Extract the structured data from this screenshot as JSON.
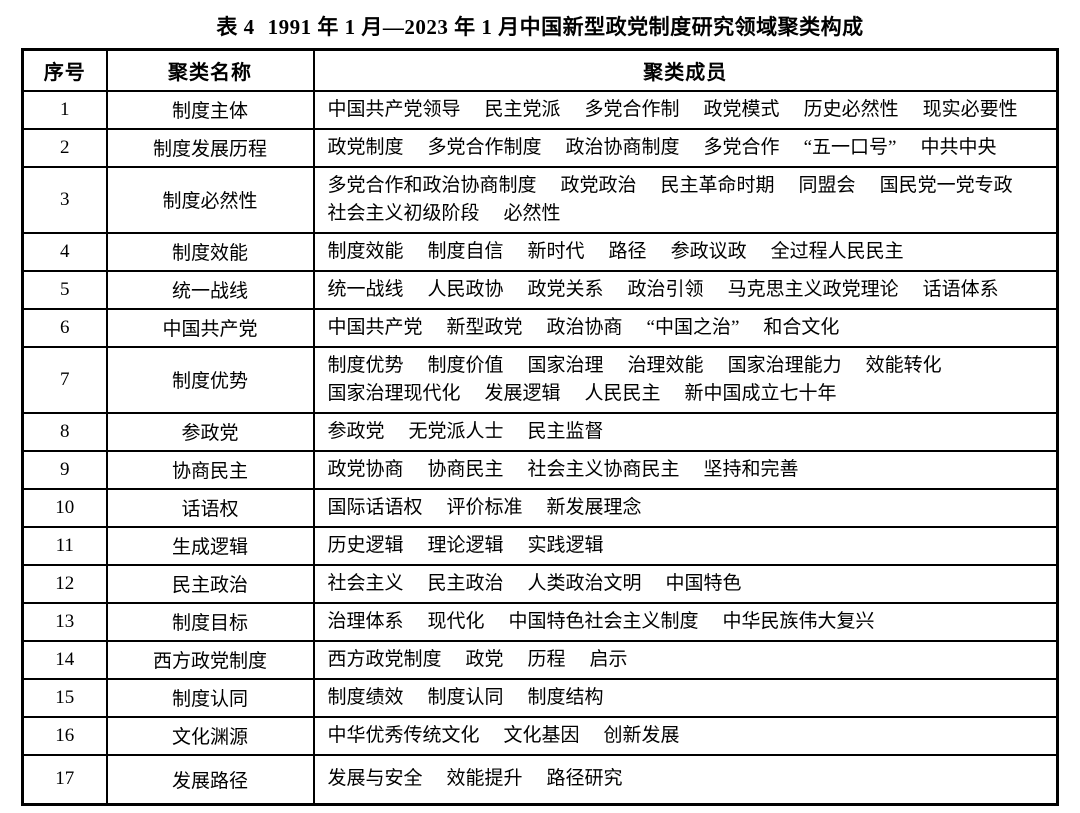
{
  "title": {
    "label": "表 4",
    "caption": "1991 年 1 月—2023 年 1 月中国新型政党制度研究领域聚类构成"
  },
  "table": {
    "headers": [
      "序号",
      "聚类名称",
      "聚类成员"
    ],
    "rows": [
      {
        "no": "1",
        "name": "制度主体",
        "members": [
          "中国共产党领导",
          "民主党派",
          "多党合作制",
          "政党模式",
          "历史必然性",
          "现实必要性"
        ]
      },
      {
        "no": "2",
        "name": "制度发展历程",
        "members": [
          "政党制度",
          "多党合作制度",
          "政治协商制度",
          "多党合作",
          "“五一口号”",
          "中共中央"
        ]
      },
      {
        "no": "3",
        "name": "制度必然性",
        "members": [
          "多党合作和政治协商制度",
          "政党政治",
          "民主革命时期",
          "同盟会",
          "国民党一党专政",
          "社会主义初级阶段",
          "必然性"
        ]
      },
      {
        "no": "4",
        "name": "制度效能",
        "members": [
          "制度效能",
          "制度自信",
          "新时代",
          "路径",
          "参政议政",
          "全过程人民民主"
        ]
      },
      {
        "no": "5",
        "name": "统一战线",
        "members": [
          "统一战线",
          "人民政协",
          "政党关系",
          "政治引领",
          "马克思主义政党理论",
          "话语体系"
        ]
      },
      {
        "no": "6",
        "name": "中国共产党",
        "members": [
          "中国共产党",
          "新型政党",
          "政治协商",
          "“中国之治”",
          "和合文化"
        ]
      },
      {
        "no": "7",
        "name": "制度优势",
        "members": [
          "制度优势",
          "制度价值",
          "国家治理",
          "治理效能",
          "国家治理能力",
          "效能转化",
          "国家治理现代化",
          "发展逻辑",
          "人民民主",
          "新中国成立七十年"
        ]
      },
      {
        "no": "8",
        "name": "参政党",
        "members": [
          "参政党",
          "无党派人士",
          "民主监督"
        ]
      },
      {
        "no": "9",
        "name": "协商民主",
        "members": [
          "政党协商",
          "协商民主",
          "社会主义协商民主",
          "坚持和完善"
        ]
      },
      {
        "no": "10",
        "name": "话语权",
        "members": [
          "国际话语权",
          "评价标准",
          "新发展理念"
        ]
      },
      {
        "no": "11",
        "name": "生成逻辑",
        "members": [
          "历史逻辑",
          "理论逻辑",
          "实践逻辑"
        ]
      },
      {
        "no": "12",
        "name": "民主政治",
        "members": [
          "社会主义",
          "民主政治",
          "人类政治文明",
          "中国特色"
        ]
      },
      {
        "no": "13",
        "name": "制度目标",
        "members": [
          "治理体系",
          "现代化",
          "中国特色社会主义制度",
          "中华民族伟大复兴"
        ]
      },
      {
        "no": "14",
        "name": "西方政党制度",
        "members": [
          "西方政党制度",
          "政党",
          "历程",
          "启示"
        ]
      },
      {
        "no": "15",
        "name": "制度认同",
        "members": [
          "制度绩效",
          "制度认同",
          "制度结构"
        ]
      },
      {
        "no": "16",
        "name": "文化渊源",
        "members": [
          "中华优秀传统文化",
          "文化基因",
          "创新发展"
        ]
      },
      {
        "no": "17",
        "name": "发展路径",
        "members": [
          "发展与安全",
          "效能提升",
          "路径研究"
        ]
      }
    ]
  }
}
